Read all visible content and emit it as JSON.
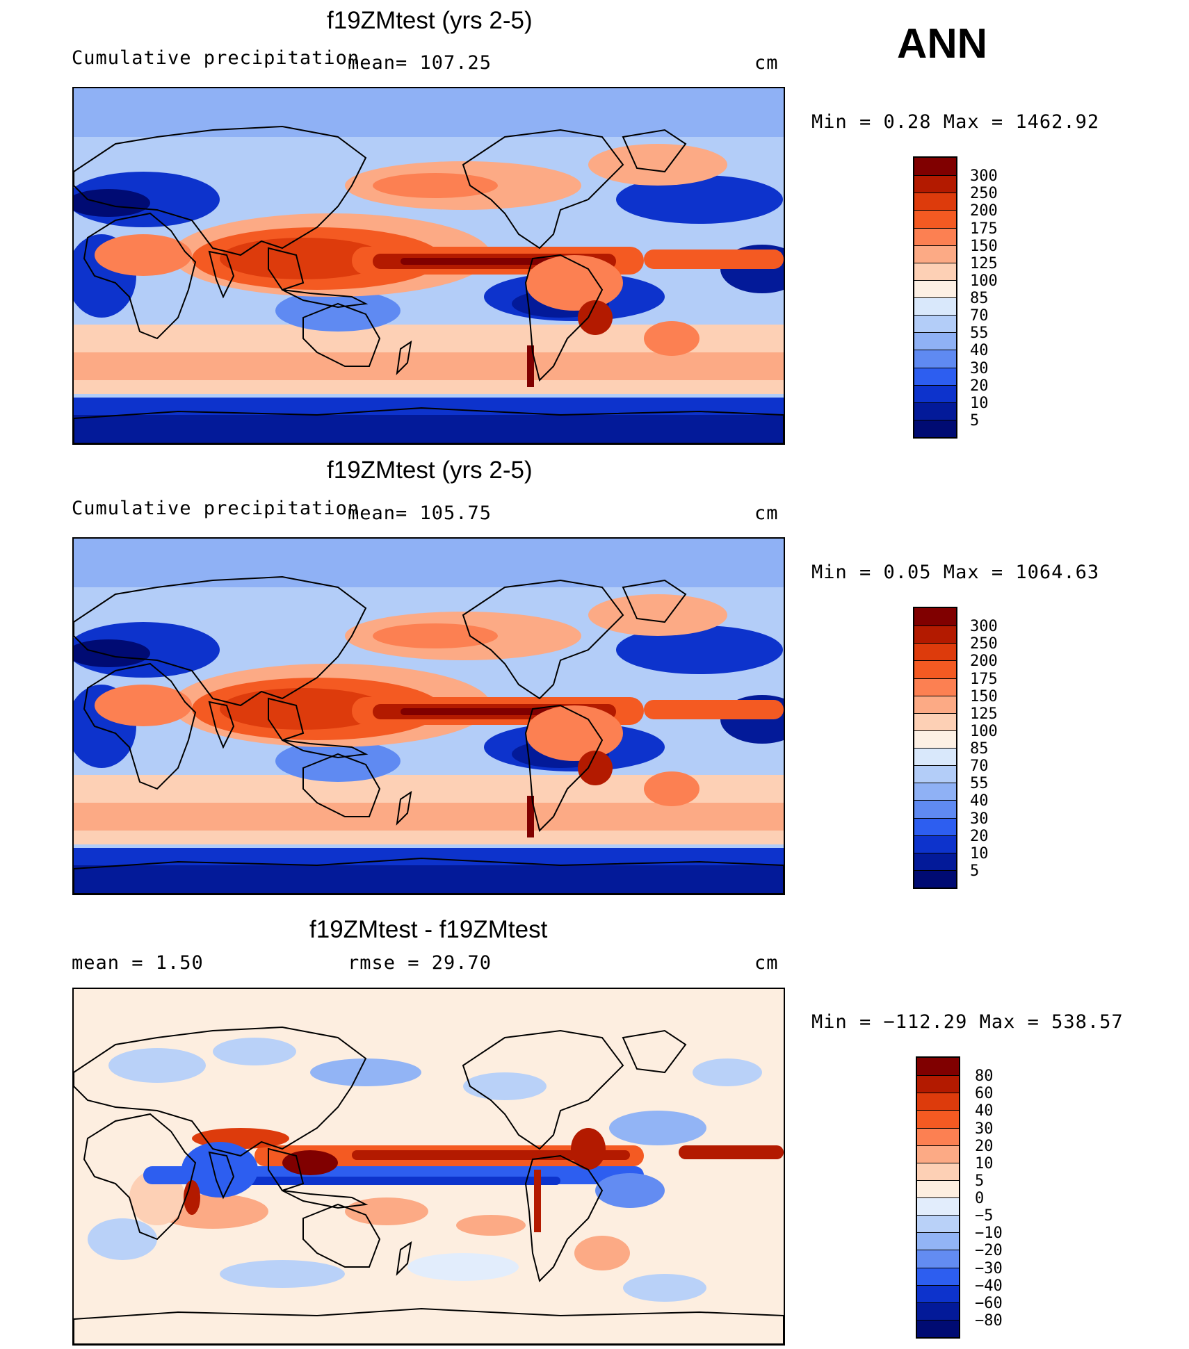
{
  "season": "ANN",
  "units": "cm",
  "panels": [
    {
      "title": "f19ZMtest (yrs 2-5)",
      "variable": "Cumulative precipitation",
      "stat": "mean=  107.25",
      "range": "Min  =     0.28  Max  =  1462.92",
      "levels": [
        "300",
        "250",
        "200",
        "175",
        "150",
        "125",
        "100",
        "85",
        "70",
        "55",
        "40",
        "30",
        "20",
        "10",
        "5"
      ]
    },
    {
      "title": "f19ZMtest (yrs 2-5)",
      "variable": "Cumulative precipitation",
      "stat": "mean=  105.75",
      "range": "Min  =     0.05  Max  =  1064.63",
      "levels": [
        "300",
        "250",
        "200",
        "175",
        "150",
        "125",
        "100",
        "85",
        "70",
        "55",
        "40",
        "30",
        "20",
        "10",
        "5"
      ]
    },
    {
      "title": "f19ZMtest - f19ZMtest",
      "stat1": "mean  =     1.50",
      "stat2": "rmse  =    29.70",
      "range": "Min  = −112.29  Max  =  538.57",
      "levels": [
        "80",
        "60",
        "40",
        "30",
        "20",
        "10",
        "5",
        "0",
        "−5",
        "−10",
        "−20",
        "−30",
        "−40",
        "−60",
        "−80"
      ]
    }
  ],
  "colors": {
    "abs_scale": [
      "#800000",
      "#b31a00",
      "#dd3b0c",
      "#f45a22",
      "#fc8052",
      "#fcaa85",
      "#fdd0b5",
      "#fdf0e4",
      "#d9e8fb",
      "#b3cdf8",
      "#8fb1f5",
      "#5f8af2",
      "#2d5ef0",
      "#0d33cc",
      "#031a99",
      "#000b73"
    ],
    "diff_scale": [
      "#800000",
      "#b31a00",
      "#dd3b0c",
      "#f45a22",
      "#fc8052",
      "#fcaa85",
      "#fdd0b5",
      "#fdeee0",
      "#e2edfc",
      "#b9d1f8",
      "#92b4f5",
      "#638cf2",
      "#2d5ef0",
      "#0d33cc",
      "#031a99",
      "#000b73"
    ],
    "coast": "#000000"
  }
}
